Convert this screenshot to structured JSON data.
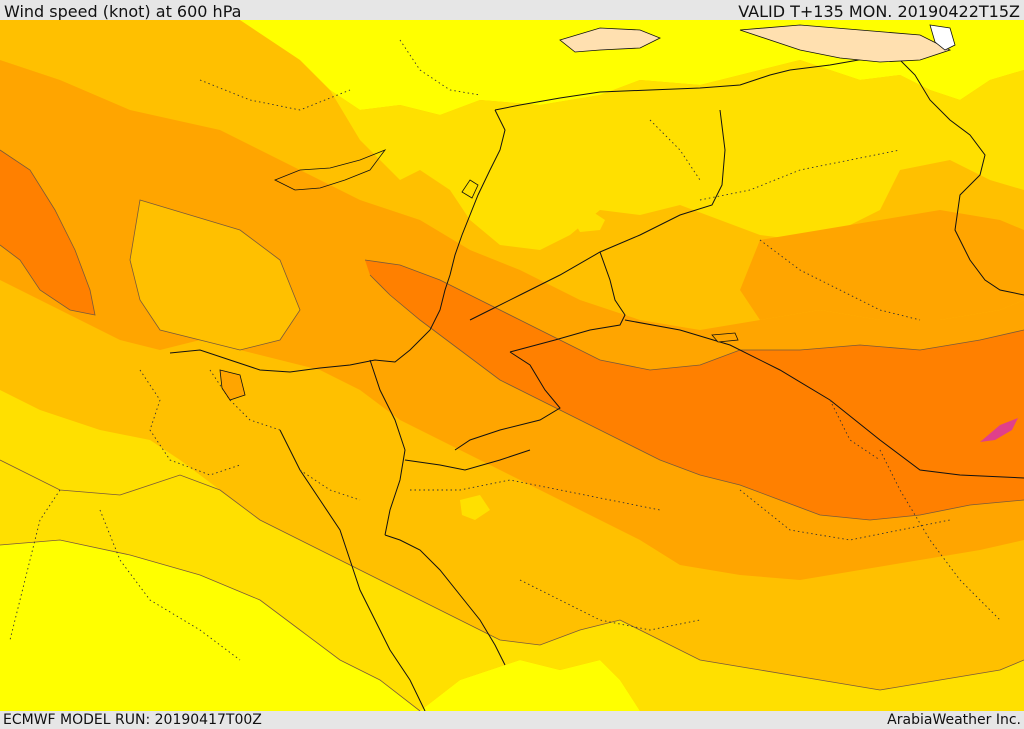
{
  "header": {
    "title": "Wind speed (knot) at 600 hPa",
    "valid": "VALID T+135 MON. 20190422T15Z"
  },
  "footer": {
    "model_run": "ECMWF MODEL RUN: 20190417T00Z",
    "credit": "ArabiaWeather Inc."
  },
  "colors": {
    "pale_yellow": "#ffff00",
    "yellow": "#ffe000",
    "light_orange": "#ffc000",
    "orange": "#ffa500",
    "dark_orange": "#ff8000",
    "land_low": "#ffe0b0",
    "magenta": "#e0408a"
  }
}
